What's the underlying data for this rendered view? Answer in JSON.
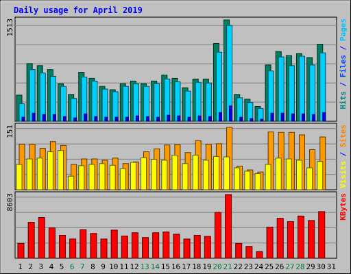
{
  "chart_data": {
    "type": "bar",
    "title": "Daily usage for April 2019",
    "x_labels": [
      "1",
      "2",
      "3",
      "4",
      "5",
      "6",
      "7",
      "8",
      "9",
      "10",
      "11",
      "12",
      "13",
      "14",
      "15",
      "16",
      "17",
      "18",
      "19",
      "20",
      "21",
      "22",
      "23",
      "24",
      "25",
      "26",
      "27",
      "28",
      "29",
      "30",
      "31"
    ],
    "weekend_label_color": "#008040",
    "weekend_days": [
      6,
      7,
      13,
      14,
      20,
      21,
      27,
      28
    ],
    "panels": [
      {
        "id": "hits-files-pages",
        "max_label": "1513",
        "ymax": 1513,
        "side_label_parts": [
          {
            "text": "Pages",
            "color": "#00c0ff"
          },
          {
            "text": " / ",
            "color": "#0000ff"
          },
          {
            "text": "Files",
            "color": "#0040ff"
          },
          {
            "text": " / ",
            "color": "#0000ff"
          },
          {
            "text": "Hits",
            "color": "#008080"
          }
        ],
        "series": [
          {
            "name": "Hits",
            "color": "#008060",
            "values": [
              390,
              860,
              830,
              770,
              560,
              400,
              730,
              640,
              520,
              470,
              560,
              600,
              560,
              600,
              690,
              640,
              500,
              630,
              630,
              1160,
              1513,
              400,
              330,
              220,
              840,
              1040,
              980,
              1010,
              950,
              1150,
              0
            ]
          },
          {
            "name": "Files",
            "color": "#00d0ff",
            "values": [
              260,
              770,
              720,
              670,
              520,
              340,
              660,
              600,
              480,
              440,
              520,
              560,
              520,
              560,
              630,
              590,
              450,
              580,
              570,
              1030,
              1430,
              350,
              280,
              190,
              750,
              960,
              830,
              970,
              840,
              1020,
              0
            ]
          },
          {
            "name": "Pages",
            "color": "#0000ff",
            "values": [
              60,
              120,
              100,
              100,
              70,
              50,
              110,
              70,
              60,
              60,
              60,
              80,
              70,
              60,
              90,
              80,
              60,
              80,
              70,
              130,
              230,
              60,
              40,
              30,
              120,
              120,
              110,
              110,
              100,
              130,
              0
            ]
          }
        ]
      },
      {
        "id": "visits-sites",
        "max_label": "151",
        "ymax": 151,
        "side_label_parts": [
          {
            "text": "Sites",
            "color": "#ff8000"
          },
          {
            "text": " / ",
            "color": "#0000ff"
          },
          {
            "text": "Visits",
            "color": "#ffff00"
          }
        ],
        "series": [
          {
            "name": "Visits",
            "color": "#ff9900",
            "values": [
              108,
              108,
              98,
              114,
              105,
              60,
              73,
              73,
              70,
              75,
              62,
              66,
              90,
              97,
              106,
              107,
              88,
              116,
              108,
              109,
              148,
              56,
              47,
              42,
              137,
              136,
              136,
              130,
              95,
              125,
              0
            ]
          },
          {
            "name": "Sites",
            "color": "#ffff00",
            "values": [
              60,
              73,
              75,
              90,
              93,
              32,
              57,
              60,
              62,
              58,
              50,
              65,
              76,
              72,
              70,
              82,
              62,
              82,
              70,
              79,
              78,
              52,
              44,
              38,
              60,
              75,
              73,
              70,
              52,
              67,
              0
            ]
          }
        ]
      },
      {
        "id": "kbytes",
        "max_label": "8603",
        "ymax": 8603,
        "side_label_parts": [
          {
            "text": "KBytes",
            "color": "#ff0000"
          }
        ],
        "series": [
          {
            "name": "KBytes",
            "color": "#ff0000",
            "values": [
              2000,
              4850,
              5500,
              4100,
              3100,
              2600,
              3850,
              3350,
              2600,
              3800,
              3000,
              3450,
              2800,
              3450,
              3550,
              3250,
              2600,
              3100,
              2950,
              6200,
              8603,
              2000,
              1600,
              900,
              4200,
              5400,
              4950,
              5700,
              5100,
              6300,
              0
            ]
          }
        ]
      }
    ]
  }
}
